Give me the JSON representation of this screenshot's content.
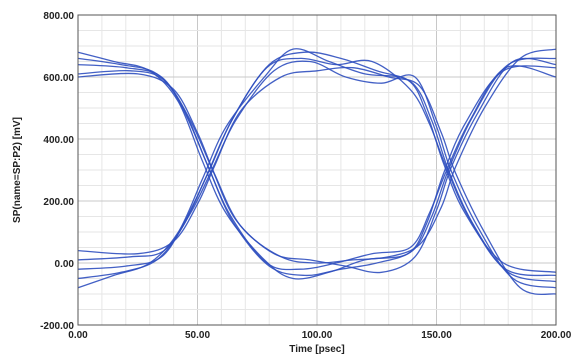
{
  "chart_data": {
    "type": "line",
    "title": "",
    "xlabel": "Time [psec]",
    "ylabel": "SP(name=SP:P2) [mV]",
    "xlim": [
      0,
      200
    ],
    "ylim": [
      -200,
      800
    ],
    "x_ticks": [
      "0.00",
      "50.00",
      "100.00",
      "150.00",
      "200.00"
    ],
    "y_ticks": [
      "800.00",
      "600.00",
      "400.00",
      "200.00",
      "0.00",
      "-200.00"
    ],
    "grid": true,
    "legend": "none",
    "line_color": "#2f4fbf",
    "series_description": "eye diagram: overlaid transitions between logic low (~0 mV) and high (~620 mV), crossings near 55 psec and 155 psec at ~300 mV",
    "series": [
      {
        "x": [
          0,
          20,
          35,
          45,
          55,
          65,
          80,
          95,
          110,
          125,
          140,
          148,
          155,
          165,
          180,
          200
        ],
        "y": [
          640,
          630,
          600,
          480,
          300,
          130,
          -10,
          -40,
          -20,
          0,
          40,
          150,
          300,
          470,
          640,
          660
        ]
      },
      {
        "x": [
          0,
          20,
          35,
          45,
          55,
          65,
          80,
          95,
          110,
          125,
          140,
          148,
          155,
          165,
          180,
          200
        ],
        "y": [
          -20,
          -10,
          20,
          140,
          300,
          470,
          640,
          680,
          660,
          620,
          580,
          460,
          300,
          130,
          -30,
          -60
        ]
      },
      {
        "x": [
          0,
          25,
          40,
          50,
          57,
          68,
          85,
          100,
          115,
          130,
          143,
          152,
          158,
          170,
          185,
          200
        ],
        "y": [
          600,
          610,
          560,
          420,
          290,
          120,
          20,
          0,
          10,
          20,
          60,
          180,
          310,
          500,
          660,
          690
        ]
      },
      {
        "x": [
          0,
          25,
          40,
          50,
          57,
          68,
          85,
          100,
          115,
          130,
          143,
          152,
          158,
          170,
          185,
          200
        ],
        "y": [
          40,
          30,
          70,
          190,
          310,
          490,
          600,
          620,
          630,
          600,
          570,
          420,
          290,
          100,
          -80,
          -100
        ]
      },
      {
        "x": [
          0,
          15,
          30,
          42,
          52,
          62,
          78,
          90,
          105,
          120,
          138,
          146,
          153,
          162,
          178,
          200
        ],
        "y": [
          680,
          650,
          620,
          520,
          330,
          160,
          10,
          -50,
          -30,
          10,
          30,
          130,
          290,
          450,
          620,
          630
        ]
      },
      {
        "x": [
          0,
          15,
          30,
          42,
          52,
          62,
          78,
          90,
          105,
          120,
          138,
          146,
          153,
          162,
          178,
          200
        ],
        "y": [
          -80,
          -40,
          0,
          100,
          270,
          440,
          600,
          690,
          650,
          610,
          590,
          480,
          320,
          160,
          0,
          -30
        ]
      },
      {
        "x": [
          0,
          22,
          36,
          47,
          56,
          66,
          82,
          97,
          112,
          127,
          141,
          150,
          156,
          167,
          182,
          200
        ],
        "y": [
          610,
          620,
          590,
          460,
          305,
          140,
          30,
          10,
          -10,
          -30,
          20,
          170,
          305,
          480,
          650,
          640
        ]
      },
      {
        "x": [
          0,
          22,
          36,
          47,
          56,
          66,
          82,
          97,
          112,
          127,
          141,
          150,
          156,
          167,
          182,
          200
        ],
        "y": [
          10,
          20,
          40,
          160,
          300,
          460,
          620,
          650,
          600,
          580,
          600,
          440,
          300,
          120,
          -50,
          -80
        ]
      },
      {
        "x": [
          0,
          18,
          33,
          44,
          54,
          64,
          79,
          93,
          108,
          123,
          139,
          147,
          154,
          164,
          179,
          200
        ],
        "y": [
          660,
          640,
          610,
          500,
          320,
          150,
          0,
          -20,
          0,
          30,
          50,
          160,
          295,
          460,
          630,
          600
        ]
      },
      {
        "x": [
          0,
          18,
          33,
          44,
          54,
          64,
          79,
          93,
          108,
          123,
          139,
          147,
          154,
          164,
          179,
          200
        ],
        "y": [
          -50,
          -30,
          10,
          120,
          285,
          455,
          630,
          660,
          640,
          650,
          560,
          450,
          310,
          140,
          -20,
          -40
        ]
      }
    ]
  }
}
